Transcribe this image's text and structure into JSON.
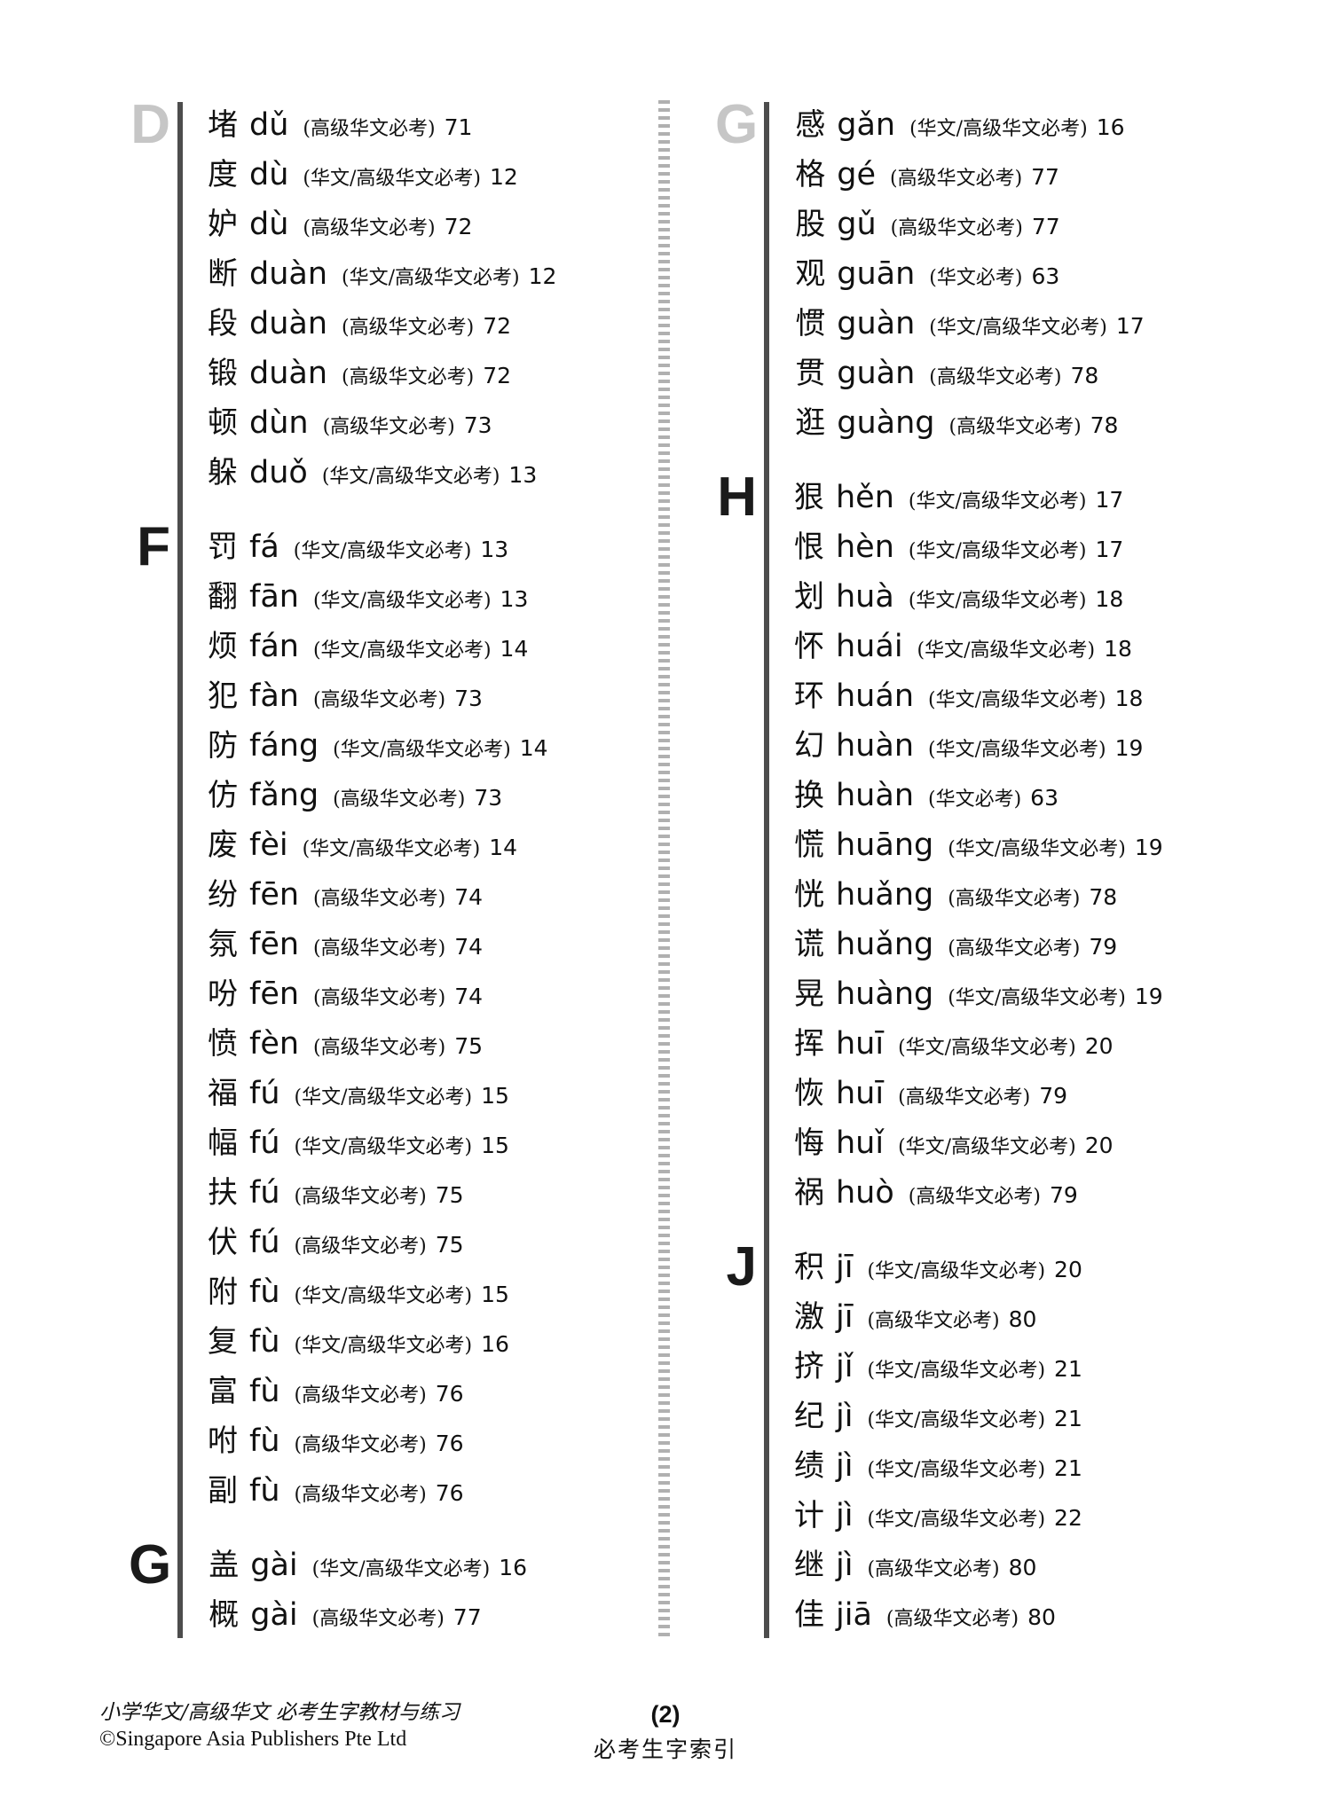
{
  "colors": {
    "text": "#111111",
    "section_letter_active": "#1a1a1a",
    "section_letter_muted": "#c6c6c6",
    "column_rule": "#4d4d4d",
    "divider_dash": "#b0b0b0",
    "background": "#ffffff"
  },
  "footer": {
    "left_line1": "小学华文/高级华文 必考生字教材与练习",
    "left_line2": "©Singapore Asia Publishers Pte Ltd",
    "page_number": "(2)",
    "center_title": "必考生字索引"
  },
  "columns": {
    "left": {
      "sections": [
        {
          "letter": "D",
          "muted": true,
          "entries": [
            {
              "hanzi": "堵",
              "pinyin": "dǔ",
              "category": "(高级华文必考)",
              "page": "71"
            },
            {
              "hanzi": "度",
              "pinyin": "dù",
              "category": "(华文/高级华文必考)",
              "page": "12"
            },
            {
              "hanzi": "妒",
              "pinyin": "dù",
              "category": "(高级华文必考)",
              "page": "72"
            },
            {
              "hanzi": "断",
              "pinyin": "duàn",
              "category": "(华文/高级华文必考)",
              "page": "12"
            },
            {
              "hanzi": "段",
              "pinyin": "duàn",
              "category": "(高级华文必考)",
              "page": "72"
            },
            {
              "hanzi": "锻",
              "pinyin": "duàn",
              "category": "(高级华文必考)",
              "page": "72"
            },
            {
              "hanzi": "顿",
              "pinyin": "dùn",
              "category": "(高级华文必考)",
              "page": "73"
            },
            {
              "hanzi": "躲",
              "pinyin": "duǒ",
              "category": "(华文/高级华文必考)",
              "page": "13"
            }
          ]
        },
        {
          "letter": "F",
          "muted": false,
          "entries": [
            {
              "hanzi": "罚",
              "pinyin": "fá",
              "category": "(华文/高级华文必考)",
              "page": "13"
            },
            {
              "hanzi": "翻",
              "pinyin": "fān",
              "category": "(华文/高级华文必考)",
              "page": "13"
            },
            {
              "hanzi": "烦",
              "pinyin": "fán",
              "category": "(华文/高级华文必考)",
              "page": "14"
            },
            {
              "hanzi": "犯",
              "pinyin": "fàn",
              "category": "(高级华文必考)",
              "page": "73"
            },
            {
              "hanzi": "防",
              "pinyin": "fáng",
              "category": "(华文/高级华文必考)",
              "page": "14"
            },
            {
              "hanzi": "仿",
              "pinyin": "fǎng",
              "category": "(高级华文必考)",
              "page": "73"
            },
            {
              "hanzi": "废",
              "pinyin": "fèi",
              "category": "(华文/高级华文必考)",
              "page": "14"
            },
            {
              "hanzi": "纷",
              "pinyin": "fēn",
              "category": "(高级华文必考)",
              "page": "74"
            },
            {
              "hanzi": "氛",
              "pinyin": "fēn",
              "category": "(高级华文必考)",
              "page": "74"
            },
            {
              "hanzi": "吩",
              "pinyin": "fēn",
              "category": "(高级华文必考)",
              "page": "74"
            },
            {
              "hanzi": "愤",
              "pinyin": "fèn",
              "category": "(高级华文必考)",
              "page": "75"
            },
            {
              "hanzi": "福",
              "pinyin": "fú",
              "category": "(华文/高级华文必考)",
              "page": "15"
            },
            {
              "hanzi": "幅",
              "pinyin": "fú",
              "category": "(华文/高级华文必考)",
              "page": "15"
            },
            {
              "hanzi": "扶",
              "pinyin": "fú",
              "category": "(高级华文必考)",
              "page": "75"
            },
            {
              "hanzi": "伏",
              "pinyin": "fú",
              "category": "(高级华文必考)",
              "page": "75"
            },
            {
              "hanzi": "附",
              "pinyin": "fù",
              "category": "(华文/高级华文必考)",
              "page": "15"
            },
            {
              "hanzi": "复",
              "pinyin": "fù",
              "category": "(华文/高级华文必考)",
              "page": "16"
            },
            {
              "hanzi": "富",
              "pinyin": "fù",
              "category": "(高级华文必考)",
              "page": "76"
            },
            {
              "hanzi": "咐",
              "pinyin": "fù",
              "category": "(高级华文必考)",
              "page": "76"
            },
            {
              "hanzi": "副",
              "pinyin": "fù",
              "category": "(高级华文必考)",
              "page": "76"
            }
          ]
        },
        {
          "letter": "G",
          "muted": false,
          "entries": [
            {
              "hanzi": "盖",
              "pinyin": "gài",
              "category": "(华文/高级华文必考)",
              "page": "16"
            },
            {
              "hanzi": "概",
              "pinyin": "gài",
              "category": "(高级华文必考)",
              "page": "77"
            }
          ]
        }
      ]
    },
    "right": {
      "sections": [
        {
          "letter": "G",
          "muted": true,
          "entries": [
            {
              "hanzi": "感",
              "pinyin": "gǎn",
              "category": "(华文/高级华文必考)",
              "page": "16"
            },
            {
              "hanzi": "格",
              "pinyin": "gé",
              "category": "(高级华文必考)",
              "page": "77"
            },
            {
              "hanzi": "股",
              "pinyin": "gǔ",
              "category": "(高级华文必考)",
              "page": "77"
            },
            {
              "hanzi": "观",
              "pinyin": "guān",
              "category": "(华文必考)",
              "page": "63"
            },
            {
              "hanzi": "惯",
              "pinyin": "guàn",
              "category": "(华文/高级华文必考)",
              "page": "17"
            },
            {
              "hanzi": "贯",
              "pinyin": "guàn",
              "category": "(高级华文必考)",
              "page": "78"
            },
            {
              "hanzi": "逛",
              "pinyin": "guàng",
              "category": "(高级华文必考)",
              "page": "78"
            }
          ]
        },
        {
          "letter": "H",
          "muted": false,
          "entries": [
            {
              "hanzi": "狠",
              "pinyin": "hěn",
              "category": "(华文/高级华文必考)",
              "page": "17"
            },
            {
              "hanzi": "恨",
              "pinyin": "hèn",
              "category": "(华文/高级华文必考)",
              "page": "17"
            },
            {
              "hanzi": "划",
              "pinyin": "huà",
              "category": "(华文/高级华文必考)",
              "page": "18"
            },
            {
              "hanzi": "怀",
              "pinyin": "huái",
              "category": "(华文/高级华文必考)",
              "page": "18"
            },
            {
              "hanzi": "环",
              "pinyin": "huán",
              "category": "(华文/高级华文必考)",
              "page": "18"
            },
            {
              "hanzi": "幻",
              "pinyin": "huàn",
              "category": "(华文/高级华文必考)",
              "page": "19"
            },
            {
              "hanzi": "换",
              "pinyin": "huàn",
              "category": "(华文必考)",
              "page": "63"
            },
            {
              "hanzi": "慌",
              "pinyin": "huāng",
              "category": "(华文/高级华文必考)",
              "page": "19"
            },
            {
              "hanzi": "恍",
              "pinyin": "huǎng",
              "category": "(高级华文必考)",
              "page": "78"
            },
            {
              "hanzi": "谎",
              "pinyin": "huǎng",
              "category": "(高级华文必考)",
              "page": "79"
            },
            {
              "hanzi": "晃",
              "pinyin": "huàng",
              "category": "(华文/高级华文必考)",
              "page": "19"
            },
            {
              "hanzi": "挥",
              "pinyin": "huī",
              "category": "(华文/高级华文必考)",
              "page": "20"
            },
            {
              "hanzi": "恢",
              "pinyin": "huī",
              "category": "(高级华文必考)",
              "page": "79"
            },
            {
              "hanzi": "悔",
              "pinyin": "huǐ",
              "category": "(华文/高级华文必考)",
              "page": "20"
            },
            {
              "hanzi": "祸",
              "pinyin": "huò",
              "category": "(高级华文必考)",
              "page": "79"
            }
          ]
        },
        {
          "letter": "J",
          "muted": false,
          "entries": [
            {
              "hanzi": "积",
              "pinyin": "jī",
              "category": "(华文/高级华文必考)",
              "page": "20"
            },
            {
              "hanzi": "激",
              "pinyin": "jī",
              "category": "(高级华文必考)",
              "page": "80"
            },
            {
              "hanzi": "挤",
              "pinyin": "jǐ",
              "category": "(华文/高级华文必考)",
              "page": "21"
            },
            {
              "hanzi": "纪",
              "pinyin": "jì",
              "category": "(华文/高级华文必考)",
              "page": "21"
            },
            {
              "hanzi": "绩",
              "pinyin": "jì",
              "category": "(华文/高级华文必考)",
              "page": "21"
            },
            {
              "hanzi": "计",
              "pinyin": "jì",
              "category": "(华文/高级华文必考)",
              "page": "22"
            },
            {
              "hanzi": "继",
              "pinyin": "jì",
              "category": "(高级华文必考)",
              "page": "80"
            },
            {
              "hanzi": "佳",
              "pinyin": "jiā",
              "category": "(高级华文必考)",
              "page": "80"
            }
          ]
        }
      ]
    }
  }
}
